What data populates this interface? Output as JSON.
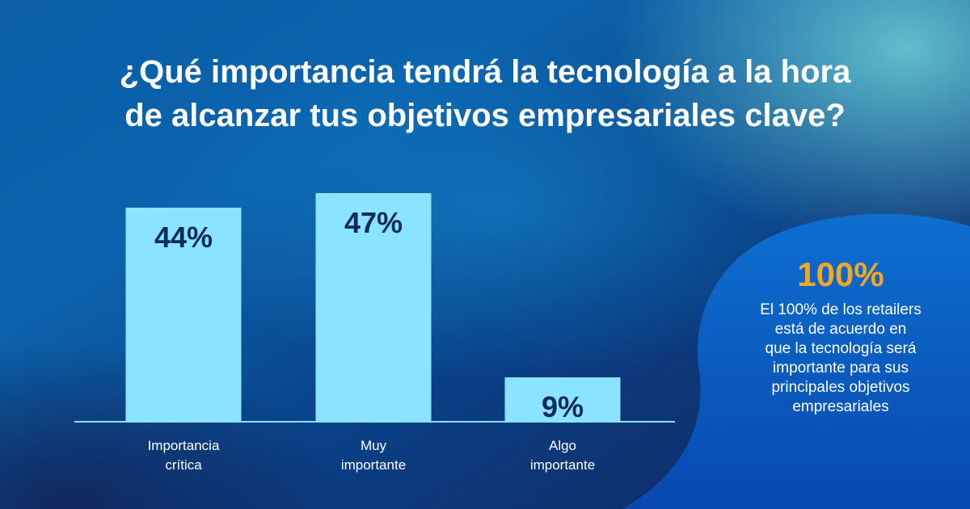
{
  "title_line1": "¿Qué importancia tendrá la tecnología a la hora",
  "title_line2": "de alcanzar tus objetivos empresariales clave?",
  "colors": {
    "bar": "#8ae3ff",
    "bar_label": "#0f2a5c",
    "axis": "#8ae3ff",
    "highlight": "#f5a623",
    "blob": "#0b5fc0"
  },
  "chart_data": {
    "type": "bar",
    "categories": [
      "Importancia crítica",
      "Muy importante",
      "Algo importante"
    ],
    "category_lines": [
      [
        "Importancia",
        "crítica"
      ],
      [
        "Muy",
        "importante"
      ],
      [
        "Algo",
        "importante"
      ]
    ],
    "values": [
      44,
      47,
      9
    ],
    "value_labels": [
      "44%",
      "47%",
      "9%"
    ],
    "title": "¿Qué importancia tendrá la tecnología a la hora de alcanzar tus objetivos empresariales clave?",
    "xlabel": "",
    "ylabel": "",
    "ylim": [
      0,
      50
    ],
    "grid": false,
    "legend": "none"
  },
  "callout": {
    "value": "100%",
    "lines": [
      "El 100% de los retailers",
      "está de acuerdo en",
      "que la tecnología será",
      "importante para sus",
      "principales objetivos",
      "empresariales"
    ]
  }
}
